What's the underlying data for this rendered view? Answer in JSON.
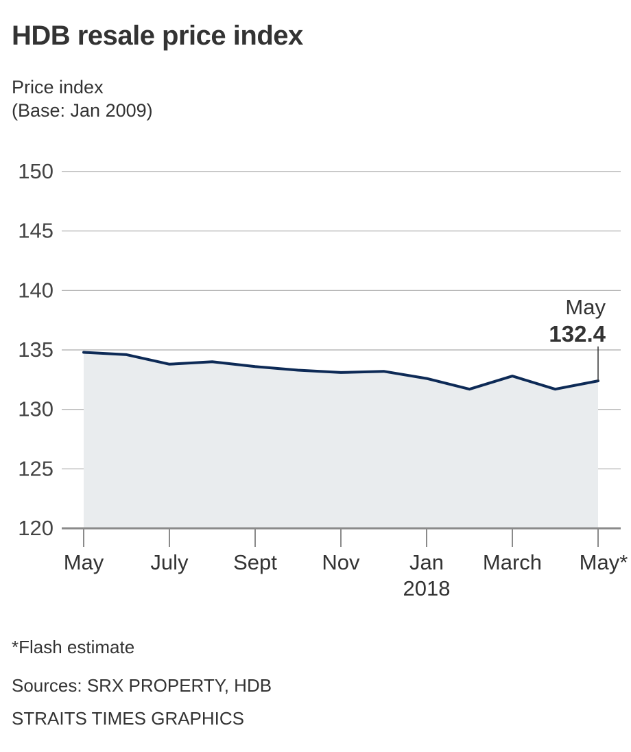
{
  "chart_data": {
    "type": "area",
    "title": "HDB resale price index",
    "ylabel_lines": [
      "Price index",
      "(Base: Jan 2009)"
    ],
    "xlabel": "",
    "ylim": [
      120,
      150
    ],
    "yticks": [
      120,
      125,
      130,
      135,
      140,
      145,
      150
    ],
    "x": [
      "May 2017",
      "Jun 2017",
      "Jul 2017",
      "Aug 2017",
      "Sep 2017",
      "Oct 2017",
      "Nov 2017",
      "Dec 2017",
      "Jan 2018",
      "Feb 2018",
      "Mar 2018",
      "Apr 2018",
      "May 2018"
    ],
    "xtick_labels": [
      {
        "index": 0,
        "label": "May",
        "sub": ""
      },
      {
        "index": 2,
        "label": "July",
        "sub": ""
      },
      {
        "index": 4,
        "label": "Sept",
        "sub": ""
      },
      {
        "index": 6,
        "label": "Nov",
        "sub": ""
      },
      {
        "index": 8,
        "label": "Jan",
        "sub": "2018"
      },
      {
        "index": 10,
        "label": "March",
        "sub": ""
      },
      {
        "index": 12,
        "label": "May*",
        "sub": ""
      }
    ],
    "series": [
      {
        "name": "HDB resale price index",
        "values": [
          134.8,
          134.6,
          133.8,
          134.0,
          133.6,
          133.3,
          133.1,
          133.2,
          132.6,
          131.7,
          132.8,
          131.7,
          132.4
        ]
      }
    ],
    "annotation": {
      "index": 12,
      "label": "May",
      "value_text": "132.4"
    },
    "grid": true,
    "colors": {
      "line": "#0d2a56",
      "fill": "#e9ecee",
      "grid": "#a9a9a9",
      "axis": "#8a8a8a",
      "text": "#333333"
    }
  },
  "footer": {
    "note": "*Flash estimate",
    "sources": "Sources: SRX PROPERTY, HDB",
    "credit": "STRAITS TIMES GRAPHICS"
  }
}
